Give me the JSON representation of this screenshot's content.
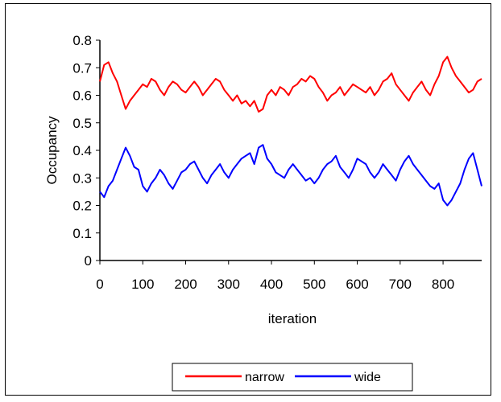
{
  "chart_data": {
    "type": "line",
    "title": "",
    "xlabel": "iteration",
    "ylabel": "Occupancy",
    "xlim": [
      0,
      890
    ],
    "ylim": [
      0,
      0.8
    ],
    "x_ticks": [
      0,
      100,
      200,
      300,
      400,
      500,
      600,
      700,
      800
    ],
    "y_ticks": [
      0,
      0.1,
      0.2,
      0.3,
      0.4,
      0.5,
      0.6,
      0.7,
      0.8
    ],
    "x_tick_labels": [
      "0",
      "100",
      "200",
      "300",
      "400",
      "500",
      "600",
      "700",
      "800"
    ],
    "y_tick_labels": [
      "0",
      "0.1",
      "0.2",
      "0.3",
      "0.4",
      "0.5",
      "0.6",
      "0.7",
      "0.8"
    ],
    "grid": false,
    "legend_position": "bottom",
    "series": [
      {
        "name": "narrow",
        "color": "#ff0000",
        "x": [
          0,
          10,
          20,
          30,
          40,
          50,
          60,
          70,
          80,
          90,
          100,
          110,
          120,
          130,
          140,
          150,
          160,
          170,
          180,
          190,
          200,
          210,
          220,
          230,
          240,
          250,
          260,
          270,
          280,
          290,
          300,
          310,
          320,
          330,
          340,
          350,
          360,
          370,
          380,
          390,
          400,
          410,
          420,
          430,
          440,
          450,
          460,
          470,
          480,
          490,
          500,
          510,
          520,
          530,
          540,
          550,
          560,
          570,
          580,
          590,
          600,
          610,
          620,
          630,
          640,
          650,
          660,
          670,
          680,
          690,
          700,
          710,
          720,
          730,
          740,
          750,
          760,
          770,
          780,
          790,
          800,
          810,
          820,
          830,
          840,
          850,
          860,
          870,
          880,
          890
        ],
        "values": [
          0.65,
          0.71,
          0.72,
          0.68,
          0.65,
          0.6,
          0.55,
          0.58,
          0.6,
          0.62,
          0.64,
          0.63,
          0.66,
          0.65,
          0.62,
          0.6,
          0.63,
          0.65,
          0.64,
          0.62,
          0.61,
          0.63,
          0.65,
          0.63,
          0.6,
          0.62,
          0.64,
          0.66,
          0.65,
          0.62,
          0.6,
          0.58,
          0.6,
          0.57,
          0.58,
          0.56,
          0.58,
          0.54,
          0.55,
          0.6,
          0.62,
          0.6,
          0.63,
          0.62,
          0.6,
          0.63,
          0.64,
          0.66,
          0.65,
          0.67,
          0.66,
          0.63,
          0.61,
          0.58,
          0.6,
          0.61,
          0.63,
          0.6,
          0.62,
          0.64,
          0.63,
          0.62,
          0.61,
          0.63,
          0.6,
          0.62,
          0.65,
          0.66,
          0.68,
          0.64,
          0.62,
          0.6,
          0.58,
          0.61,
          0.63,
          0.65,
          0.62,
          0.6,
          0.64,
          0.67,
          0.72,
          0.74,
          0.7,
          0.67,
          0.65,
          0.63,
          0.61,
          0.62,
          0.65,
          0.66
        ]
      },
      {
        "name": "wide",
        "color": "#0000ff",
        "x": [
          0,
          10,
          20,
          30,
          40,
          50,
          60,
          70,
          80,
          90,
          100,
          110,
          120,
          130,
          140,
          150,
          160,
          170,
          180,
          190,
          200,
          210,
          220,
          230,
          240,
          250,
          260,
          270,
          280,
          290,
          300,
          310,
          320,
          330,
          340,
          350,
          360,
          370,
          380,
          390,
          400,
          410,
          420,
          430,
          440,
          450,
          460,
          470,
          480,
          490,
          500,
          510,
          520,
          530,
          540,
          550,
          560,
          570,
          580,
          590,
          600,
          610,
          620,
          630,
          640,
          650,
          660,
          670,
          680,
          690,
          700,
          710,
          720,
          730,
          740,
          750,
          760,
          770,
          780,
          790,
          800,
          810,
          820,
          830,
          840,
          850,
          860,
          870,
          880,
          890
        ],
        "values": [
          0.25,
          0.23,
          0.27,
          0.29,
          0.33,
          0.37,
          0.41,
          0.38,
          0.34,
          0.33,
          0.27,
          0.25,
          0.28,
          0.3,
          0.33,
          0.31,
          0.28,
          0.26,
          0.29,
          0.32,
          0.33,
          0.35,
          0.36,
          0.33,
          0.3,
          0.28,
          0.31,
          0.33,
          0.35,
          0.32,
          0.3,
          0.33,
          0.35,
          0.37,
          0.38,
          0.39,
          0.35,
          0.41,
          0.42,
          0.37,
          0.35,
          0.32,
          0.31,
          0.3,
          0.33,
          0.35,
          0.33,
          0.31,
          0.29,
          0.3,
          0.28,
          0.3,
          0.33,
          0.35,
          0.36,
          0.38,
          0.34,
          0.32,
          0.3,
          0.33,
          0.37,
          0.36,
          0.35,
          0.32,
          0.3,
          0.32,
          0.35,
          0.33,
          0.31,
          0.29,
          0.33,
          0.36,
          0.38,
          0.35,
          0.33,
          0.31,
          0.29,
          0.27,
          0.26,
          0.28,
          0.22,
          0.2,
          0.22,
          0.25,
          0.28,
          0.33,
          0.37,
          0.39,
          0.33,
          0.27
        ]
      }
    ]
  }
}
